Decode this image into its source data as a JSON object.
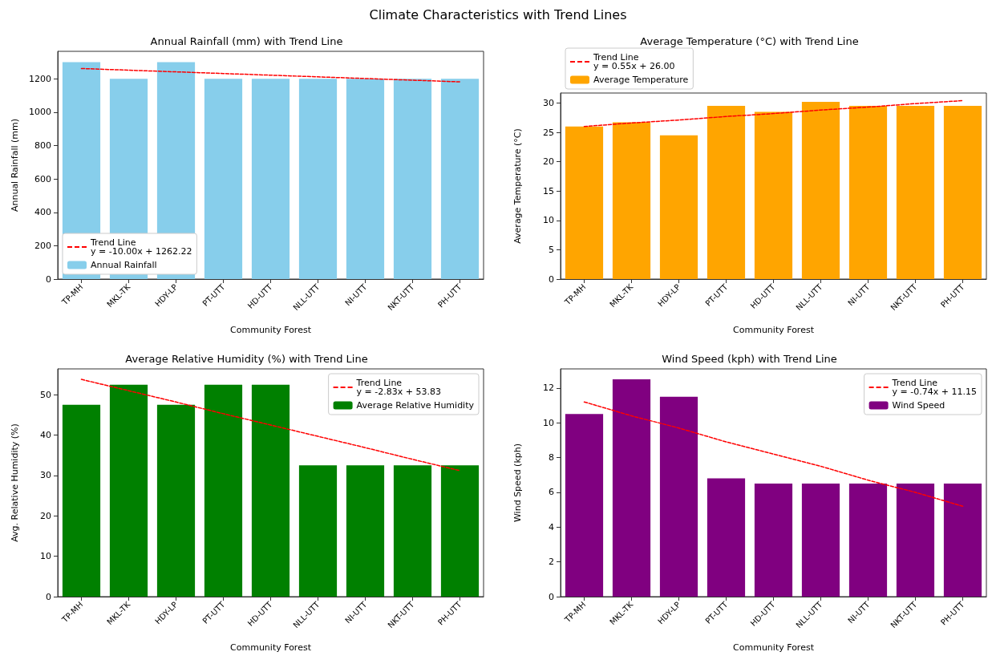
{
  "chart_data": [
    {
      "type": "bar",
      "title": "Annual Rainfall (mm) with Trend Line",
      "annotations": [
        "Climate Characteristics with Trend Lines"
      ],
      "xlabel": "Community Forest",
      "ylabel": "Annual Rainfall (mm)",
      "categories": [
        "TP-MH",
        "MKL-TK",
        "HDY-LP",
        "PT-UTT",
        "HD-UTT",
        "NLL-UTT",
        "NI-UTT",
        "NKT-UTT",
        "PH-UTT"
      ],
      "ylim": [
        0,
        1365
      ],
      "yticks": [
        0,
        200,
        400,
        600,
        800,
        1000,
        1200
      ],
      "legend": "bottom left",
      "series": [
        {
          "type": "line",
          "name": "Trend Line\ny = -10.00x + 1262.22",
          "color": "#ff0000",
          "line_style": "dashed",
          "values": [
            1262,
            1252,
            1242,
            1232,
            1222,
            1212,
            1202,
            1192,
            1182
          ]
        },
        {
          "name": "Annual Rainfall",
          "color": "#87ceeb",
          "values": [
            1300,
            1200,
            1300,
            1200,
            1200,
            1200,
            1200,
            1200,
            1200
          ]
        }
      ]
    },
    {
      "type": "bar",
      "title": "Average Temperature (°C) with Trend Line",
      "xlabel": "Community Forest",
      "ylabel": "Average Temperature (°C)",
      "categories": [
        "TP-MH",
        "MKL-TK",
        "HDY-LP",
        "PT-UTT",
        "HD-UTT",
        "NLL-UTT",
        "NI-UTT",
        "NKT-UTT",
        "PH-UTT"
      ],
      "ylim": [
        0,
        31.7
      ],
      "yticks": [
        0,
        5,
        10,
        15,
        20,
        25,
        30
      ],
      "legend": "top left",
      "series": [
        {
          "type": "line",
          "name": "Trend Line\ny = 0.55x + 26.00",
          "color": "#ff0000",
          "line_style": "dashed",
          "values": [
            26.0,
            26.6,
            27.1,
            27.7,
            28.2,
            28.8,
            29.3,
            29.9,
            30.4
          ]
        },
        {
          "name": "Average Temperature",
          "color": "#ffa500",
          "values": [
            26,
            26.7,
            24.5,
            29.5,
            28.5,
            30.2,
            29.5,
            29.5,
            29.5
          ]
        }
      ]
    },
    {
      "type": "bar",
      "title": "Average Relative Humidity (%) with Trend Line",
      "xlabel": "Community Forest",
      "ylabel": "Avg. Relative Humidity (%)",
      "categories": [
        "TP-MH",
        "MKL-TK",
        "HDY-LP",
        "PT-UTT",
        "HD-UTT",
        "NLL-UTT",
        "NI-UTT",
        "NKT-UTT",
        "PH-UTT"
      ],
      "ylim": [
        0,
        56.4
      ],
      "yticks": [
        0,
        10,
        20,
        30,
        40,
        50
      ],
      "legend": "top right",
      "series": [
        {
          "type": "line",
          "name": "Trend Line\ny = -2.83x + 53.83",
          "color": "#ff0000",
          "line_style": "dashed",
          "values": [
            53.8,
            51.0,
            48.2,
            45.3,
            42.5,
            39.7,
            36.9,
            34.0,
            31.2
          ]
        },
        {
          "name": "Average Relative Humidity",
          "color": "#008000",
          "values": [
            47.5,
            52.5,
            47.5,
            52.5,
            52.5,
            32.5,
            32.5,
            32.5,
            32.5
          ]
        }
      ]
    },
    {
      "type": "bar",
      "title": "Wind Speed (kph) with Trend Line",
      "xlabel": "Community Forest",
      "ylabel": "Wind Speed (kph)",
      "categories": [
        "TP-MH",
        "MKL-TK",
        "HDY-LP",
        "PT-UTT",
        "HD-UTT",
        "NLL-UTT",
        "NI-UTT",
        "NKT-UTT",
        "PH-UTT"
      ],
      "ylim": [
        0,
        13.1
      ],
      "yticks": [
        0,
        2,
        4,
        6,
        8,
        10,
        12
      ],
      "legend": "top right",
      "series": [
        {
          "type": "line",
          "name": "Trend Line\ny = -0.74x + 11.15",
          "color": "#ff0000",
          "line_style": "dashed",
          "values": [
            11.2,
            10.4,
            9.7,
            8.9,
            8.2,
            7.5,
            6.7,
            6.0,
            5.2
          ]
        },
        {
          "name": "Wind Speed",
          "color": "#800080",
          "values": [
            10.5,
            12.5,
            11.5,
            6.8,
            6.5,
            6.5,
            6.5,
            6.5,
            6.5
          ]
        }
      ]
    }
  ]
}
